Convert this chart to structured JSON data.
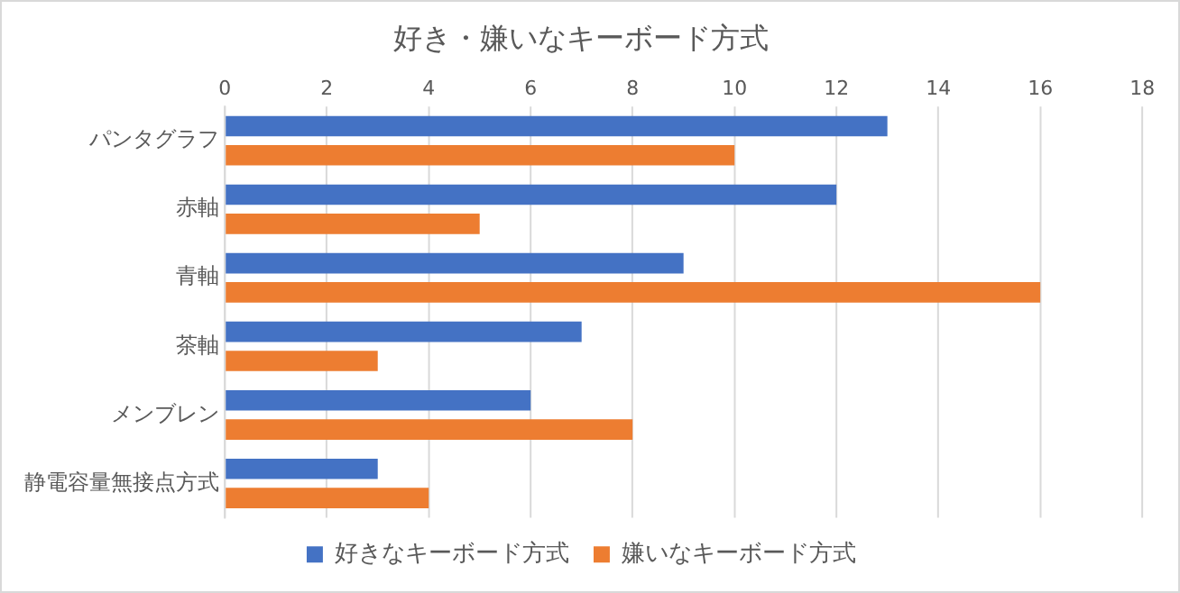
{
  "chart_data": {
    "type": "bar",
    "orientation": "horizontal",
    "title": "好き・嫌いなキーボード方式",
    "categories": [
      "パンタグラフ",
      "赤軸",
      "青軸",
      "茶軸",
      "メンブレン",
      "静電容量無接点方式"
    ],
    "series": [
      {
        "name": "好きなキーボード方式",
        "color": "#4472c4",
        "values": [
          13,
          12,
          9,
          7,
          6,
          3
        ]
      },
      {
        "name": "嫌いなキーボード方式",
        "color": "#ed7d31",
        "values": [
          10,
          5,
          16,
          3,
          8,
          4
        ]
      }
    ],
    "xlim": [
      0,
      18
    ],
    "xticks": [
      0,
      2,
      4,
      6,
      8,
      10,
      12,
      14,
      16,
      18
    ],
    "grid": "x",
    "legend": "bottom"
  }
}
